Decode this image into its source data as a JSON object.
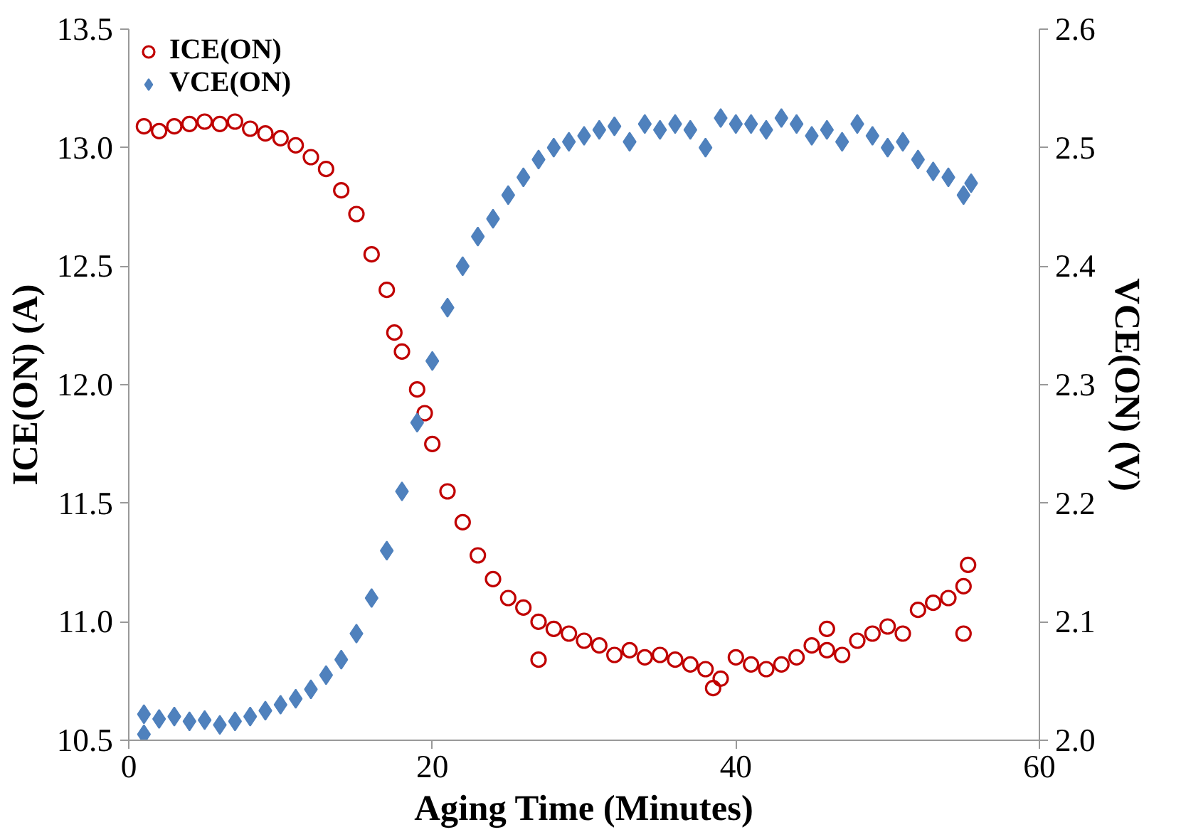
{
  "chart_data": {
    "type": "scatter",
    "xlabel": "Aging Time (Minutes)",
    "ylabel": "ICE(ON) (A)",
    "y2label": "VCE(ON) (V)",
    "xlim": [
      0,
      60
    ],
    "xticks": [
      0,
      20,
      40,
      60
    ],
    "ylim": [
      10.5,
      13.5
    ],
    "yticks": [
      10.5,
      {
        "value": 11,
        "label": "11.0"
      },
      11.5,
      {
        "value": 12,
        "label": "12.0"
      },
      12.5,
      {
        "value": 13,
        "label": "13.0"
      },
      13.5
    ],
    "y2lim": [
      2.0,
      2.6
    ],
    "y2ticks": [
      {
        "value": 2,
        "label": "2.0"
      },
      2.1,
      2.2,
      2.3,
      2.4,
      2.5,
      2.6
    ],
    "grid": false,
    "legend": "top left",
    "series": [
      {
        "name": "ICE(ON)",
        "color": "#c00000",
        "marker": "circle",
        "x": [
          1,
          2,
          3,
          4,
          5,
          6,
          7,
          8,
          9,
          10,
          11,
          12,
          13,
          14,
          15,
          16,
          17,
          17.5,
          18,
          19,
          19.5,
          20,
          21,
          22,
          23,
          24,
          25,
          26,
          27,
          27,
          28,
          29,
          30,
          31,
          32,
          33,
          34,
          35,
          36,
          37,
          38,
          38.5,
          39,
          40,
          41,
          42,
          43,
          44,
          45,
          46,
          46,
          47,
          48,
          49,
          50,
          51,
          52,
          53,
          54,
          55,
          55,
          55.3
        ],
        "values": [
          13.09,
          13.07,
          13.09,
          13.1,
          13.11,
          13.1,
          13.11,
          13.08,
          13.06,
          13.04,
          13.01,
          12.96,
          12.91,
          12.82,
          12.72,
          12.55,
          12.4,
          12.22,
          12.14,
          11.98,
          11.88,
          11.75,
          11.55,
          11.42,
          11.28,
          11.18,
          11.1,
          11.06,
          11.0,
          10.84,
          10.97,
          10.95,
          10.92,
          10.9,
          10.86,
          10.88,
          10.85,
          10.86,
          10.84,
          10.82,
          10.8,
          10.72,
          10.76,
          10.85,
          10.82,
          10.8,
          10.82,
          10.85,
          10.9,
          10.88,
          10.97,
          10.86,
          10.92,
          10.95,
          10.98,
          10.95,
          11.05,
          11.08,
          11.1,
          11.15,
          10.95,
          11.24
        ]
      },
      {
        "name": "VCE(ON)",
        "color": "#4f81bd",
        "marker": "diamond",
        "axis": "y2",
        "x": [
          1,
          1,
          2,
          3,
          4,
          5,
          6,
          7,
          8,
          9,
          10,
          11,
          12,
          13,
          14,
          15,
          16,
          17,
          18,
          19,
          20,
          21,
          22,
          23,
          24,
          25,
          26,
          27,
          28,
          29,
          30,
          31,
          32,
          33,
          34,
          35,
          36,
          37,
          38,
          39,
          40,
          41,
          42,
          43,
          44,
          45,
          46,
          47,
          48,
          49,
          50,
          51,
          52,
          53,
          54,
          55,
          55.5
        ],
        "values": [
          2.022,
          2.005,
          2.018,
          2.02,
          2.016,
          2.017,
          2.013,
          2.016,
          2.02,
          2.025,
          2.03,
          2.035,
          2.043,
          2.055,
          2.068,
          2.09,
          2.12,
          2.16,
          2.21,
          2.268,
          2.32,
          2.365,
          2.4,
          2.425,
          2.44,
          2.46,
          2.475,
          2.49,
          2.5,
          2.505,
          2.51,
          2.515,
          2.518,
          2.505,
          2.52,
          2.515,
          2.52,
          2.515,
          2.5,
          2.525,
          2.52,
          2.52,
          2.515,
          2.525,
          2.52,
          2.51,
          2.515,
          2.505,
          2.52,
          2.51,
          2.5,
          2.505,
          2.49,
          2.48,
          2.475,
          2.46,
          2.47
        ]
      }
    ]
  }
}
